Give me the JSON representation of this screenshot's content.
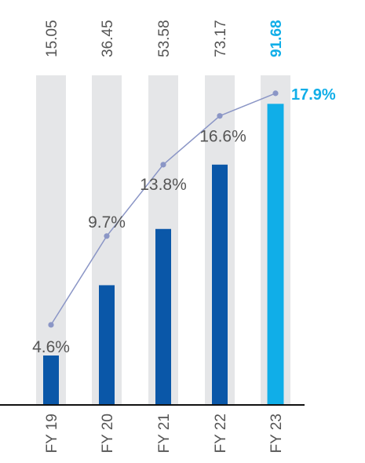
{
  "chart_data": {
    "type": "bar",
    "categories": [
      "FY 19",
      "FY 20",
      "FY 21",
      "FY 22",
      "FY 23"
    ],
    "series": [
      {
        "values": [
          15.05,
          36.45,
          53.58,
          73.17,
          91.68
        ]
      },
      {
        "values": [
          4.6,
          9.7,
          13.8,
          16.6,
          17.9
        ]
      }
    ],
    "bar_labels": [
      "15.05",
      "36.45",
      "53.58",
      "73.17",
      "91.68"
    ],
    "line_labels": [
      "4.6%",
      "9.7%",
      "13.8%",
      "16.6%",
      "17.9%"
    ],
    "highlight_index": 4,
    "ylim": [
      0,
      100
    ],
    "line_ylim": [
      0,
      20
    ],
    "grid": false,
    "title": "",
    "xlabel": "",
    "ylabel": "",
    "colors": {
      "bar": "#0a57a8",
      "bar_highlight": "#10aee8",
      "track": "#e5e6e8",
      "line": "#8b96c6",
      "label": "#555555",
      "highlight_label": "#10aee8",
      "axis": "#111111"
    }
  }
}
